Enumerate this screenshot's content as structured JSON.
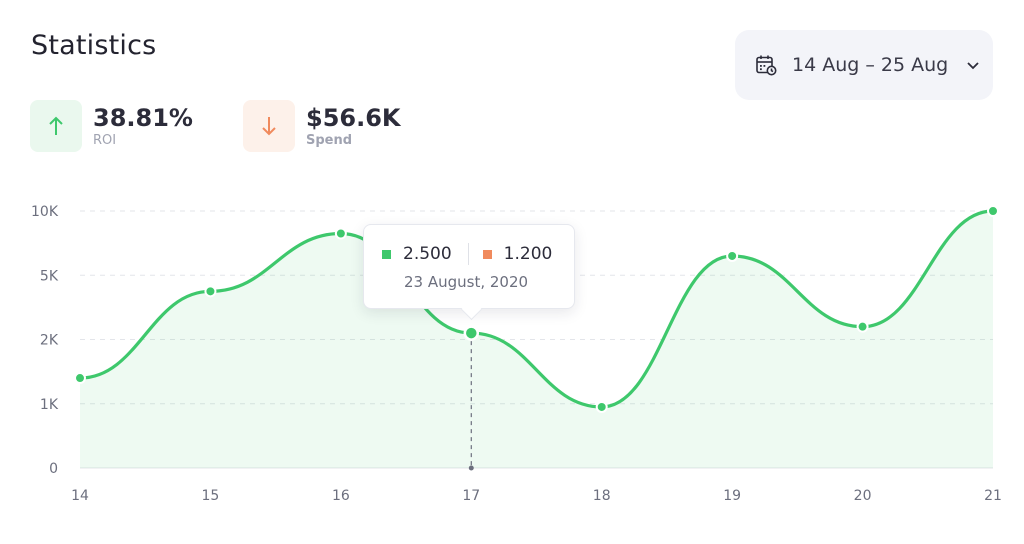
{
  "header": {
    "title": "Statistics"
  },
  "date_range": {
    "label": "14 Aug – 25 Aug",
    "icon": "calendar-icon"
  },
  "stats": [
    {
      "value": "38.81%",
      "label": "ROI",
      "direction": "up",
      "color": "#3ec86c"
    },
    {
      "value": "$56.6K",
      "label": "Spend",
      "direction": "down",
      "color": "#f08a5d"
    }
  ],
  "tooltip": {
    "series_a_value": "2.500",
    "series_b_value": "1.200",
    "date": "23 August, 2020",
    "series_a_color": "#3ec86c",
    "series_b_color": "#f08a5d",
    "x": 17
  },
  "chart_data": {
    "type": "area",
    "x": [
      14,
      15,
      16,
      17,
      18,
      19,
      20,
      21
    ],
    "y_ticks": [
      "0",
      "1K",
      "2K",
      "5K",
      "10K"
    ],
    "series": [
      {
        "name": "Statistics",
        "color": "#3ec86c",
        "values_tick_index": [
          1.4,
          2.75,
          3.65,
          2.1,
          0.95,
          3.3,
          2.2,
          4.0
        ]
      }
    ],
    "grid": true,
    "xlabel": "",
    "ylabel": ""
  }
}
